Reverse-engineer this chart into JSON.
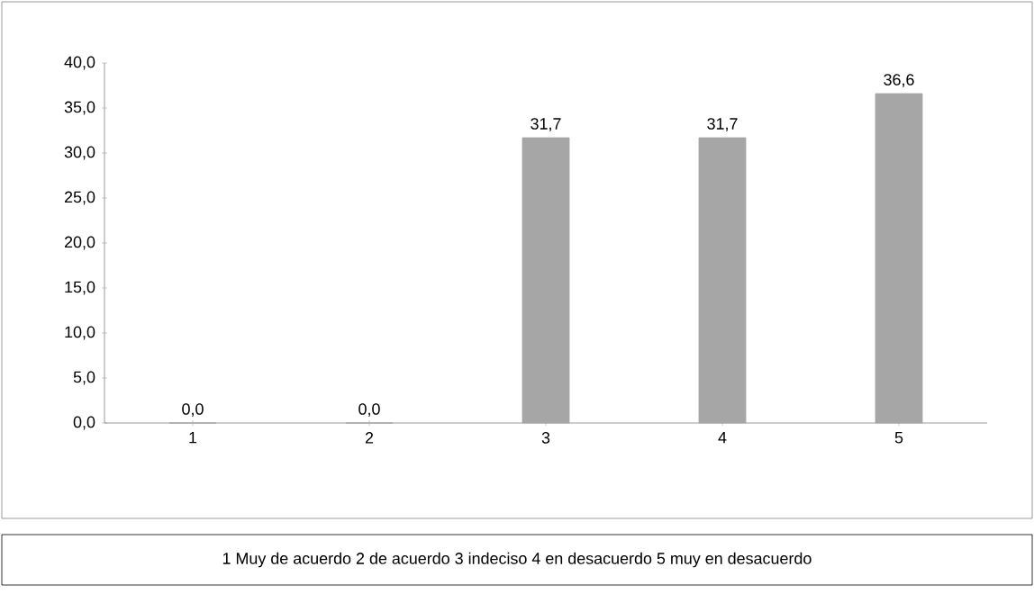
{
  "chart_data": {
    "type": "bar",
    "categories": [
      "1",
      "2",
      "3",
      "4",
      "5"
    ],
    "values": [
      0,
      0,
      31.7,
      31.7,
      36.6
    ],
    "value_labels": [
      "0,0",
      "0,0",
      "31,7",
      "31,7",
      "36,6"
    ],
    "color": "#a6a6a6",
    "ylim": [
      0,
      40
    ],
    "yticks": [
      {
        "value": 0,
        "label": "0,0"
      },
      {
        "value": 5,
        "label": "5,0"
      },
      {
        "value": 10,
        "label": "10,0"
      },
      {
        "value": 15,
        "label": "15,0"
      },
      {
        "value": 20,
        "label": "20,0"
      },
      {
        "value": 25,
        "label": "25,0"
      },
      {
        "value": 30,
        "label": "30,0"
      },
      {
        "value": 35,
        "label": "35,0"
      },
      {
        "value": 40,
        "label": "40,0"
      }
    ],
    "annotations": [
      "1 Muy de acuerdo 2 de acuerdo 3 indeciso 4 en desacuerdo 5 muy en desacuerdo"
    ]
  }
}
